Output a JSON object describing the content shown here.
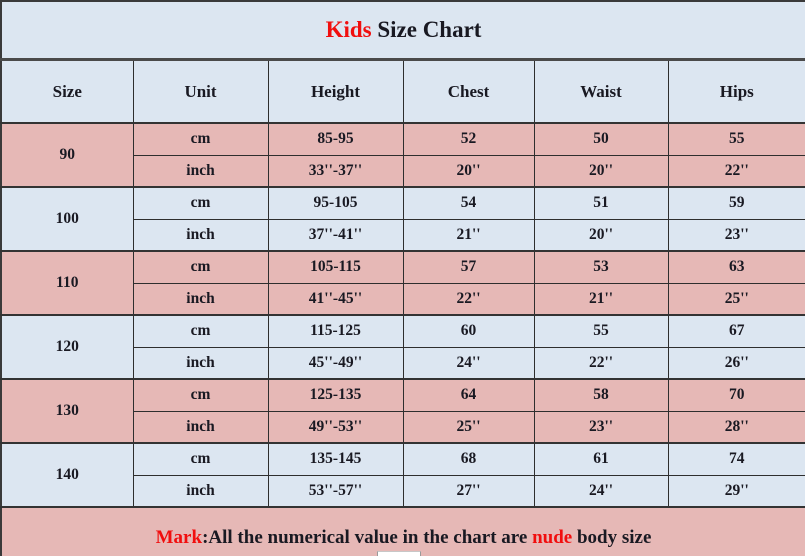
{
  "palette": {
    "row_pink": "#e6b8b6",
    "row_blue": "#dce6f1",
    "accent_red": "#f10e0e",
    "text_dark": "#191922",
    "border_dark": "#2e2e2e"
  },
  "title": {
    "kids": "Kids",
    "rest": " Size Chart"
  },
  "header": {
    "columns": [
      "Size",
      "Unit",
      "Height",
      "Chest",
      "Waist",
      "Hips"
    ]
  },
  "groups": [
    {
      "size": "90",
      "cm": {
        "unit": "cm",
        "height": "85-95",
        "chest": "52",
        "waist": "50",
        "hips": "55"
      },
      "inch": {
        "unit": "inch",
        "height": "33''-37''",
        "chest": "20''",
        "waist": "20''",
        "hips": "22''"
      }
    },
    {
      "size": "100",
      "cm": {
        "unit": "cm",
        "height": "95-105",
        "chest": "54",
        "waist": "51",
        "hips": "59"
      },
      "inch": {
        "unit": "inch",
        "height": "37''-41''",
        "chest": "21''",
        "waist": "20''",
        "hips": "23''"
      }
    },
    {
      "size": "110",
      "cm": {
        "unit": "cm",
        "height": "105-115",
        "chest": "57",
        "waist": "53",
        "hips": "63"
      },
      "inch": {
        "unit": "inch",
        "height": "41''-45''",
        "chest": "22''",
        "waist": "21''",
        "hips": "25''"
      }
    },
    {
      "size": "120",
      "cm": {
        "unit": "cm",
        "height": "115-125",
        "chest": "60",
        "waist": "55",
        "hips": "67"
      },
      "inch": {
        "unit": "inch",
        "height": "45''-49''",
        "chest": "24''",
        "waist": "22''",
        "hips": "26''"
      }
    },
    {
      "size": "130",
      "cm": {
        "unit": "cm",
        "height": "125-135",
        "chest": "64",
        "waist": "58",
        "hips": "70"
      },
      "inch": {
        "unit": "inch",
        "height": "49''-53''",
        "chest": "25''",
        "waist": "23''",
        "hips": "28''"
      }
    },
    {
      "size": "140",
      "cm": {
        "unit": "cm",
        "height": "135-145",
        "chest": "68",
        "waist": "61",
        "hips": "74"
      },
      "inch": {
        "unit": "inch",
        "height": "53''-57''",
        "chest": "27''",
        "waist": "24''",
        "hips": "29''"
      }
    }
  ],
  "footer": {
    "mark": "Mark",
    "body": ":All the numerical value in the chart are ",
    "nude": "nude",
    "tail": " body size"
  }
}
